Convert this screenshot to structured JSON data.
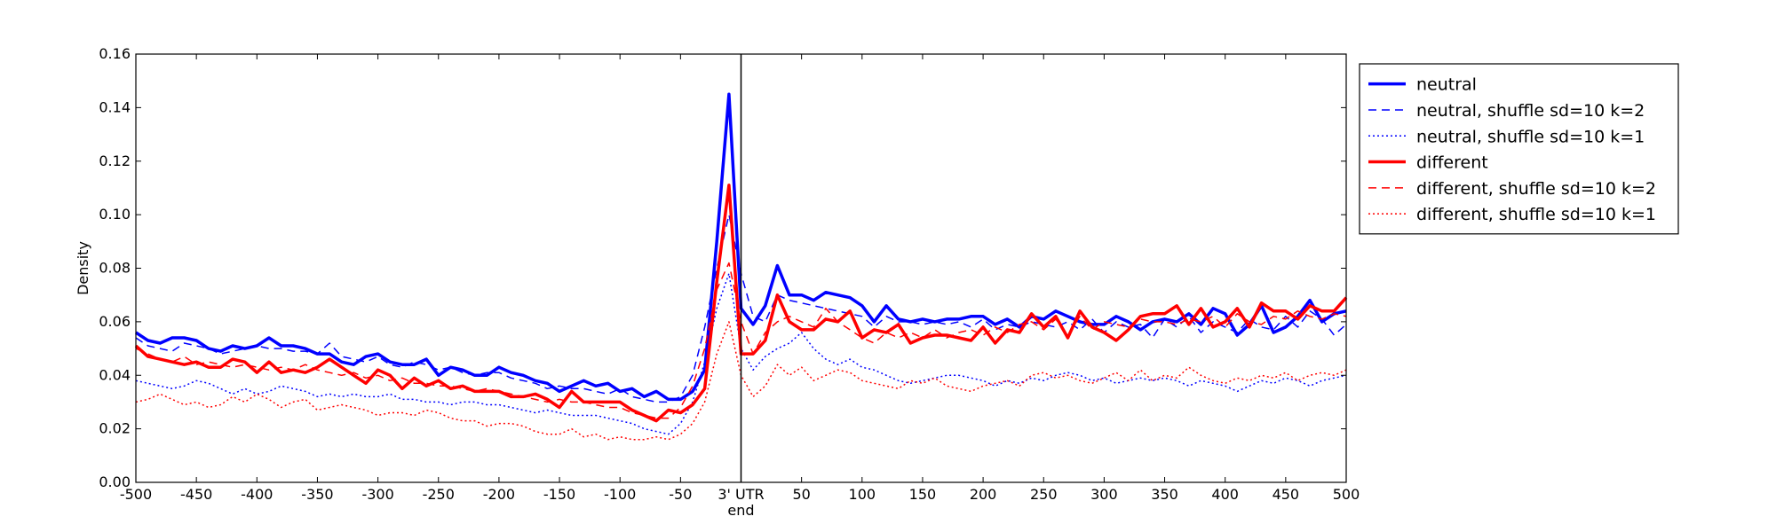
{
  "chart_data": {
    "type": "line",
    "title": "",
    "xlabel": "end",
    "ylabel": "Density",
    "xlim": [
      -500,
      500
    ],
    "ylim": [
      0,
      0.16
    ],
    "grid": false,
    "legend_position": "outside-right",
    "x_ticks": [
      -500,
      -450,
      -400,
      -350,
      -300,
      -250,
      -200,
      -150,
      -100,
      -50,
      0,
      50,
      100,
      150,
      200,
      250,
      300,
      350,
      400,
      450,
      500
    ],
    "x_tick_labels": [
      "-500",
      "-450",
      "-400",
      "-350",
      "-300",
      "-250",
      "-200",
      "-150",
      "-100",
      "-50",
      "3' UTR",
      "50",
      "100",
      "150",
      "200",
      "250",
      "300",
      "350",
      "400",
      "450",
      "500"
    ],
    "y_ticks": [
      0,
      0.02,
      0.04,
      0.06,
      0.08,
      0.1,
      0.12,
      0.14,
      0.16
    ],
    "y_tick_labels": [
      "0.00",
      "0.02",
      "0.04",
      "0.06",
      "0.08",
      "0.10",
      "0.12",
      "0.14",
      "0.16"
    ],
    "vline_x": 0,
    "x": [
      -500,
      -490,
      -480,
      -470,
      -460,
      -450,
      -440,
      -430,
      -420,
      -410,
      -400,
      -390,
      -380,
      -370,
      -360,
      -350,
      -340,
      -330,
      -320,
      -310,
      -300,
      -290,
      -280,
      -270,
      -260,
      -250,
      -240,
      -230,
      -220,
      -210,
      -200,
      -190,
      -180,
      -170,
      -160,
      -150,
      -140,
      -130,
      -120,
      -110,
      -100,
      -90,
      -80,
      -70,
      -60,
      -50,
      -40,
      -30,
      -20,
      -10,
      0,
      10,
      20,
      30,
      40,
      50,
      60,
      70,
      80,
      90,
      100,
      110,
      120,
      130,
      140,
      150,
      160,
      170,
      180,
      190,
      200,
      210,
      220,
      230,
      240,
      250,
      260,
      270,
      280,
      290,
      300,
      310,
      320,
      330,
      340,
      350,
      360,
      370,
      380,
      390,
      400,
      410,
      420,
      430,
      440,
      450,
      460,
      470,
      480,
      490,
      500
    ],
    "series": [
      {
        "name": "neutral",
        "color": "#0000ff",
        "style": "solid",
        "width": 3.5,
        "values": [
          0.056,
          0.053,
          0.052,
          0.054,
          0.054,
          0.053,
          0.05,
          0.049,
          0.051,
          0.05,
          0.051,
          0.054,
          0.051,
          0.051,
          0.05,
          0.048,
          0.048,
          0.045,
          0.044,
          0.047,
          0.048,
          0.045,
          0.044,
          0.044,
          0.046,
          0.04,
          0.043,
          0.042,
          0.04,
          0.04,
          0.043,
          0.041,
          0.04,
          0.038,
          0.037,
          0.034,
          0.036,
          0.038,
          0.036,
          0.037,
          0.034,
          0.035,
          0.032,
          0.034,
          0.031,
          0.031,
          0.034,
          0.042,
          0.09,
          0.145,
          0.065,
          0.059,
          0.066,
          0.081,
          0.07,
          0.07,
          0.068,
          0.071,
          0.07,
          0.069,
          0.066,
          0.06,
          0.066,
          0.061,
          0.06,
          0.061,
          0.06,
          0.061,
          0.061,
          0.062,
          0.062,
          0.059,
          0.061,
          0.058,
          0.062,
          0.061,
          0.064,
          0.062,
          0.06,
          0.059,
          0.059,
          0.062,
          0.06,
          0.057,
          0.06,
          0.061,
          0.06,
          0.063,
          0.059,
          0.065,
          0.063,
          0.055,
          0.059,
          0.066,
          0.056,
          0.058,
          0.062,
          0.068,
          0.06,
          0.063,
          0.064
        ]
      },
      {
        "name": "neutral, shuffle sd=10 k=2",
        "color": "#0000ff",
        "style": "dashed",
        "width": 1.5,
        "values": [
          0.054,
          0.051,
          0.05,
          0.049,
          0.052,
          0.051,
          0.05,
          0.048,
          0.049,
          0.05,
          0.051,
          0.05,
          0.05,
          0.049,
          0.049,
          0.048,
          0.052,
          0.047,
          0.046,
          0.045,
          0.047,
          0.044,
          0.043,
          0.045,
          0.044,
          0.042,
          0.043,
          0.041,
          0.04,
          0.041,
          0.041,
          0.039,
          0.038,
          0.037,
          0.035,
          0.036,
          0.035,
          0.035,
          0.034,
          0.033,
          0.035,
          0.032,
          0.031,
          0.03,
          0.03,
          0.032,
          0.04,
          0.058,
          0.08,
          0.1,
          0.078,
          0.062,
          0.06,
          0.07,
          0.068,
          0.067,
          0.066,
          0.065,
          0.064,
          0.063,
          0.062,
          0.058,
          0.062,
          0.06,
          0.06,
          0.059,
          0.06,
          0.059,
          0.06,
          0.058,
          0.061,
          0.057,
          0.059,
          0.058,
          0.06,
          0.059,
          0.058,
          0.06,
          0.057,
          0.061,
          0.056,
          0.06,
          0.058,
          0.059,
          0.054,
          0.061,
          0.058,
          0.062,
          0.056,
          0.06,
          0.058,
          0.056,
          0.061,
          0.058,
          0.057,
          0.062,
          0.058,
          0.064,
          0.061,
          0.055,
          0.059
        ]
      },
      {
        "name": "neutral, shuffle sd=10 k=1",
        "color": "#0000ff",
        "style": "dotted",
        "width": 1.5,
        "values": [
          0.038,
          0.037,
          0.036,
          0.035,
          0.036,
          0.038,
          0.037,
          0.035,
          0.033,
          0.035,
          0.033,
          0.034,
          0.036,
          0.035,
          0.034,
          0.032,
          0.033,
          0.032,
          0.033,
          0.032,
          0.032,
          0.033,
          0.031,
          0.031,
          0.03,
          0.03,
          0.029,
          0.03,
          0.03,
          0.029,
          0.029,
          0.028,
          0.027,
          0.026,
          0.027,
          0.026,
          0.025,
          0.025,
          0.025,
          0.024,
          0.023,
          0.022,
          0.02,
          0.019,
          0.018,
          0.022,
          0.03,
          0.045,
          0.065,
          0.078,
          0.05,
          0.042,
          0.047,
          0.05,
          0.052,
          0.056,
          0.05,
          0.046,
          0.044,
          0.046,
          0.043,
          0.042,
          0.04,
          0.038,
          0.037,
          0.038,
          0.039,
          0.04,
          0.04,
          0.039,
          0.038,
          0.036,
          0.038,
          0.037,
          0.039,
          0.038,
          0.04,
          0.041,
          0.04,
          0.038,
          0.039,
          0.037,
          0.038,
          0.039,
          0.038,
          0.039,
          0.038,
          0.036,
          0.038,
          0.037,
          0.036,
          0.034,
          0.036,
          0.038,
          0.037,
          0.039,
          0.038,
          0.036,
          0.038,
          0.039,
          0.04
        ]
      },
      {
        "name": "different",
        "color": "#ff0000",
        "style": "solid",
        "width": 3.5,
        "values": [
          0.051,
          0.047,
          0.046,
          0.045,
          0.044,
          0.045,
          0.043,
          0.043,
          0.046,
          0.045,
          0.041,
          0.045,
          0.041,
          0.042,
          0.041,
          0.043,
          0.046,
          0.043,
          0.04,
          0.037,
          0.042,
          0.04,
          0.035,
          0.039,
          0.036,
          0.038,
          0.035,
          0.036,
          0.034,
          0.034,
          0.034,
          0.032,
          0.032,
          0.033,
          0.031,
          0.028,
          0.034,
          0.03,
          0.03,
          0.03,
          0.03,
          0.027,
          0.025,
          0.023,
          0.027,
          0.026,
          0.029,
          0.035,
          0.075,
          0.111,
          0.048,
          0.048,
          0.053,
          0.07,
          0.06,
          0.057,
          0.057,
          0.061,
          0.06,
          0.064,
          0.054,
          0.057,
          0.056,
          0.059,
          0.052,
          0.054,
          0.055,
          0.055,
          0.054,
          0.053,
          0.058,
          0.052,
          0.057,
          0.056,
          0.063,
          0.058,
          0.062,
          0.054,
          0.064,
          0.058,
          0.056,
          0.053,
          0.057,
          0.062,
          0.063,
          0.063,
          0.066,
          0.059,
          0.065,
          0.058,
          0.06,
          0.065,
          0.058,
          0.067,
          0.064,
          0.064,
          0.061,
          0.066,
          0.064,
          0.064,
          0.069
        ]
      },
      {
        "name": "different, shuffle sd=10 k=2",
        "color": "#ff0000",
        "style": "dashed",
        "width": 1.5,
        "values": [
          0.05,
          0.048,
          0.046,
          0.045,
          0.047,
          0.044,
          0.045,
          0.044,
          0.043,
          0.044,
          0.043,
          0.042,
          0.043,
          0.042,
          0.044,
          0.042,
          0.041,
          0.04,
          0.041,
          0.039,
          0.04,
          0.038,
          0.039,
          0.037,
          0.037,
          0.036,
          0.036,
          0.035,
          0.034,
          0.035,
          0.034,
          0.033,
          0.032,
          0.031,
          0.03,
          0.031,
          0.03,
          0.03,
          0.029,
          0.028,
          0.028,
          0.026,
          0.025,
          0.024,
          0.024,
          0.028,
          0.036,
          0.05,
          0.072,
          0.082,
          0.06,
          0.048,
          0.056,
          0.06,
          0.062,
          0.06,
          0.058,
          0.065,
          0.06,
          0.057,
          0.054,
          0.052,
          0.056,
          0.054,
          0.056,
          0.054,
          0.057,
          0.054,
          0.056,
          0.057,
          0.055,
          0.058,
          0.056,
          0.059,
          0.06,
          0.057,
          0.061,
          0.055,
          0.062,
          0.057,
          0.06,
          0.059,
          0.058,
          0.061,
          0.06,
          0.06,
          0.059,
          0.061,
          0.06,
          0.062,
          0.058,
          0.063,
          0.06,
          0.059,
          0.062,
          0.061,
          0.064,
          0.062,
          0.061,
          0.063,
          0.062
        ]
      },
      {
        "name": "different, shuffle sd=10 k=1",
        "color": "#ff0000",
        "style": "dotted",
        "width": 1.5,
        "values": [
          0.03,
          0.031,
          0.033,
          0.031,
          0.029,
          0.03,
          0.028,
          0.029,
          0.032,
          0.03,
          0.033,
          0.031,
          0.028,
          0.03,
          0.031,
          0.027,
          0.028,
          0.029,
          0.028,
          0.027,
          0.025,
          0.026,
          0.026,
          0.025,
          0.027,
          0.026,
          0.024,
          0.023,
          0.023,
          0.021,
          0.022,
          0.022,
          0.021,
          0.019,
          0.018,
          0.018,
          0.02,
          0.017,
          0.018,
          0.016,
          0.017,
          0.016,
          0.016,
          0.017,
          0.016,
          0.018,
          0.022,
          0.03,
          0.048,
          0.06,
          0.04,
          0.032,
          0.036,
          0.044,
          0.04,
          0.043,
          0.038,
          0.04,
          0.042,
          0.041,
          0.038,
          0.037,
          0.036,
          0.035,
          0.038,
          0.037,
          0.039,
          0.036,
          0.035,
          0.034,
          0.036,
          0.037,
          0.038,
          0.036,
          0.04,
          0.041,
          0.039,
          0.04,
          0.038,
          0.037,
          0.039,
          0.041,
          0.038,
          0.042,
          0.038,
          0.04,
          0.039,
          0.043,
          0.04,
          0.038,
          0.037,
          0.039,
          0.038,
          0.04,
          0.039,
          0.041,
          0.038,
          0.04,
          0.041,
          0.04,
          0.042
        ]
      }
    ]
  }
}
